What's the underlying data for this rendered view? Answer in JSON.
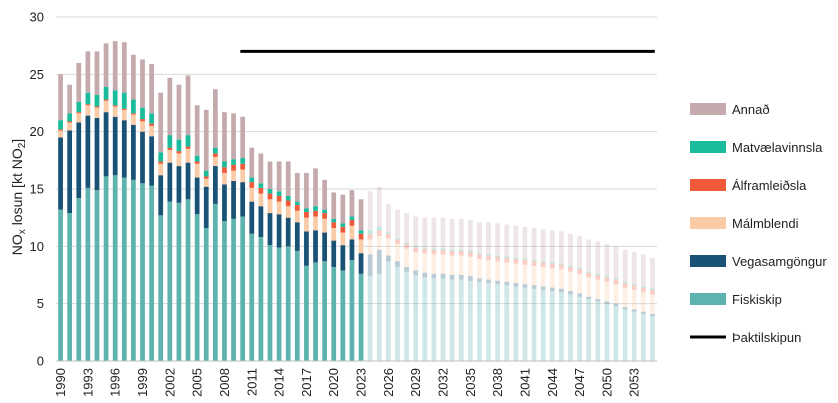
{
  "chart_data": {
    "type": "bar",
    "stacked": true,
    "ylabel_parts": [
      "NO",
      "x",
      " losun [kt NO",
      "2",
      "]"
    ],
    "ylim": [
      0,
      30
    ],
    "yticks": [
      0,
      5,
      10,
      15,
      20,
      25,
      30
    ],
    "grid": true,
    "legend_position": "right",
    "projection_start_year": 2024,
    "years": [
      1990,
      1991,
      1992,
      1993,
      1994,
      1995,
      1996,
      1997,
      1998,
      1999,
      2000,
      2001,
      2002,
      2003,
      2004,
      2005,
      2006,
      2007,
      2008,
      2009,
      2010,
      2011,
      2012,
      2013,
      2014,
      2015,
      2016,
      2017,
      2018,
      2019,
      2020,
      2021,
      2022,
      2023,
      2024,
      2025,
      2026,
      2027,
      2028,
      2029,
      2030,
      2031,
      2032,
      2033,
      2034,
      2035,
      2036,
      2037,
      2038,
      2039,
      2040,
      2041,
      2042,
      2043,
      2044,
      2045,
      2046,
      2047,
      2048,
      2049,
      2050,
      2051,
      2052,
      2053,
      2054,
      2055
    ],
    "xtick_labels": [
      "1990",
      "1993",
      "1996",
      "1999",
      "2002",
      "2005",
      "2008",
      "2011",
      "2014",
      "2017",
      "2020",
      "2023",
      "2026",
      "2029",
      "2032",
      "2035",
      "2038",
      "2041",
      "2044",
      "2047",
      "2050",
      "2053"
    ],
    "series": [
      {
        "name": "Fiskiskip",
        "color": "#5fb3ae",
        "values": [
          13.2,
          12.9,
          14.2,
          15.1,
          14.9,
          16.1,
          16.2,
          16.0,
          15.8,
          15.5,
          15.3,
          12.7,
          13.9,
          13.8,
          14.1,
          12.8,
          11.6,
          13.7,
          12.2,
          12.4,
          12.6,
          11.1,
          10.8,
          10.1,
          9.9,
          10.0,
          9.6,
          8.3,
          8.6,
          8.7,
          8.2,
          7.9,
          8.8,
          7.6,
          7.4,
          7.6,
          8.7,
          8.2,
          7.8,
          7.5,
          7.3,
          7.2,
          7.2,
          7.1,
          7.1,
          7.0,
          6.9,
          6.8,
          6.7,
          6.6,
          6.5,
          6.4,
          6.3,
          6.2,
          6.1,
          6.0,
          5.8,
          5.6,
          5.4,
          5.2,
          5.0,
          4.8,
          4.5,
          4.3,
          4.1,
          3.9
        ]
      },
      {
        "name": "Vegasamgöngur",
        "color": "#1a5276",
        "values": [
          6.3,
          7.2,
          6.6,
          6.3,
          6.3,
          5.6,
          5.1,
          5.0,
          4.8,
          4.5,
          4.3,
          3.5,
          3.4,
          3.2,
          3.2,
          3.2,
          3.6,
          3.3,
          3.2,
          3.3,
          3.0,
          2.8,
          2.7,
          2.8,
          2.9,
          2.5,
          2.5,
          3.0,
          2.8,
          2.5,
          2.3,
          2.2,
          1.8,
          1.8,
          1.9,
          2.1,
          0.5,
          0.5,
          0.4,
          0.4,
          0.4,
          0.4,
          0.4,
          0.4,
          0.4,
          0.4,
          0.3,
          0.3,
          0.3,
          0.3,
          0.3,
          0.3,
          0.3,
          0.3,
          0.3,
          0.3,
          0.3,
          0.3,
          0.2,
          0.2,
          0.2,
          0.2,
          0.2,
          0.2,
          0.2,
          0.2
        ]
      },
      {
        "name": "Málmblendi",
        "color": "#f9cba7",
        "values": [
          0.6,
          0.7,
          0.8,
          0.9,
          0.9,
          1.0,
          0.9,
          0.9,
          0.9,
          0.9,
          0.9,
          1.0,
          1.1,
          1.1,
          1.2,
          1.2,
          0.7,
          0.8,
          1.0,
          0.9,
          1.1,
          1.2,
          1.1,
          1.2,
          1.1,
          1.0,
          1.0,
          1.2,
          1.2,
          1.2,
          1.1,
          1.1,
          1.2,
          1.2,
          1.3,
          1.2,
          1.5,
          1.5,
          1.6,
          1.6,
          1.7,
          1.7,
          1.7,
          1.7,
          1.7,
          1.7,
          1.7,
          1.7,
          1.7,
          1.7,
          1.7,
          1.7,
          1.7,
          1.7,
          1.7,
          1.7,
          1.7,
          1.7,
          1.7,
          1.7,
          1.7,
          1.7,
          1.7,
          1.7,
          1.7,
          1.7
        ]
      },
      {
        "name": "Álframleiðsla",
        "color": "#f05a3a",
        "values": [
          0.1,
          0.1,
          0.1,
          0.1,
          0.1,
          0.1,
          0.1,
          0.1,
          0.1,
          0.2,
          0.2,
          0.2,
          0.2,
          0.2,
          0.2,
          0.2,
          0.2,
          0.3,
          0.5,
          0.5,
          0.5,
          0.5,
          0.5,
          0.5,
          0.5,
          0.5,
          0.5,
          0.5,
          0.5,
          0.5,
          0.5,
          0.5,
          0.5,
          0.5,
          0.5,
          0.5,
          0.4,
          0.4,
          0.4,
          0.4,
          0.4,
          0.4,
          0.4,
          0.4,
          0.4,
          0.4,
          0.4,
          0.4,
          0.4,
          0.4,
          0.4,
          0.4,
          0.4,
          0.4,
          0.4,
          0.4,
          0.4,
          0.4,
          0.4,
          0.4,
          0.4,
          0.4,
          0.4,
          0.4,
          0.4,
          0.4
        ]
      },
      {
        "name": "Matvælavinnsla",
        "color": "#1abc9c",
        "values": [
          0.8,
          0.7,
          0.9,
          1.0,
          1.0,
          1.1,
          1.3,
          1.4,
          1.2,
          1.0,
          0.9,
          0.8,
          1.1,
          1.0,
          1.0,
          0.5,
          0.5,
          0.5,
          0.5,
          0.5,
          0.5,
          0.4,
          0.4,
          0.4,
          0.4,
          0.4,
          0.3,
          0.3,
          0.4,
          0.3,
          0.3,
          0.3,
          0.3,
          0.3,
          0.3,
          0.3,
          0.1,
          0.1,
          0.1,
          0.1,
          0.1,
          0.1,
          0.1,
          0.1,
          0.1,
          0.1,
          0.1,
          0.1,
          0.1,
          0.1,
          0.1,
          0.1,
          0.1,
          0.1,
          0.1,
          0.1,
          0.1,
          0.1,
          0.1,
          0.1,
          0.1,
          0.1,
          0.1,
          0.1,
          0.1,
          0.1
        ]
      },
      {
        "name": "Annað",
        "color": "#c4aaac",
        "values": [
          4.0,
          2.5,
          3.4,
          3.6,
          3.8,
          3.8,
          4.3,
          4.4,
          3.9,
          4.2,
          4.3,
          5.2,
          5.0,
          4.8,
          5.2,
          4.4,
          5.3,
          5.1,
          4.3,
          4.0,
          3.6,
          2.6,
          2.6,
          2.4,
          2.6,
          3.0,
          2.5,
          3.1,
          3.3,
          2.6,
          2.3,
          2.5,
          2.3,
          2.7,
          3.4,
          3.5,
          2.5,
          2.5,
          2.6,
          2.6,
          2.6,
          2.7,
          2.7,
          2.7,
          2.7,
          2.7,
          2.7,
          2.8,
          2.8,
          2.8,
          2.8,
          2.8,
          2.8,
          2.8,
          2.8,
          2.8,
          2.8,
          2.8,
          2.8,
          2.8,
          2.8,
          2.8,
          2.8,
          2.8,
          2.8,
          2.7
        ]
      }
    ],
    "reference_line": {
      "name": "Þaktilskipun",
      "value": 27,
      "from_year": 2010,
      "to_year": 2055,
      "color": "#000000"
    },
    "legend_order": [
      "Annað",
      "Matvælavinnsla",
      "Álframleiðsla",
      "Málmblendi",
      "Vegasamgöngur",
      "Fiskiskip",
      "Þaktilskipun"
    ]
  }
}
